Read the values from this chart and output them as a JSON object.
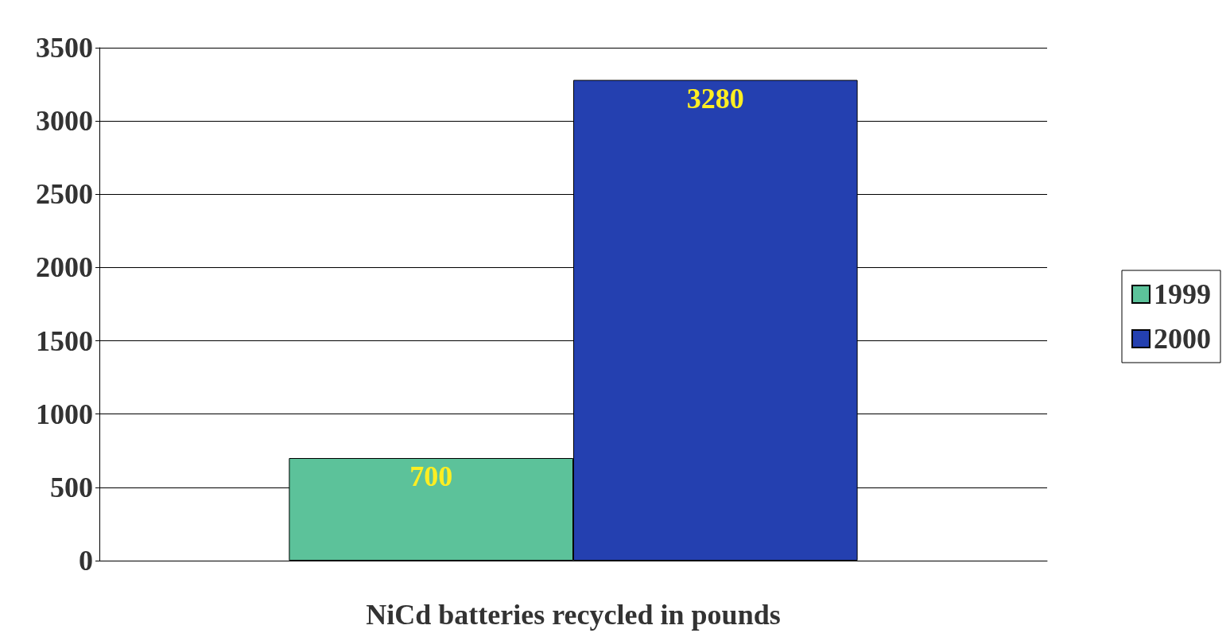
{
  "chart_data": {
    "type": "bar",
    "xlabel": "NiCd batteries recycled in pounds",
    "categories": [
      null
    ],
    "series": [
      {
        "name": "1999",
        "color": "#5cc29a",
        "values": [
          700
        ]
      },
      {
        "name": "2000",
        "color": "#2440b0",
        "values": [
          3280
        ]
      }
    ],
    "ylim": [
      0,
      3500
    ],
    "yticks": [
      0,
      500,
      1000,
      1500,
      2000,
      2500,
      3000,
      3500
    ],
    "grid": "y",
    "legend": "right",
    "data_labels": true
  }
}
